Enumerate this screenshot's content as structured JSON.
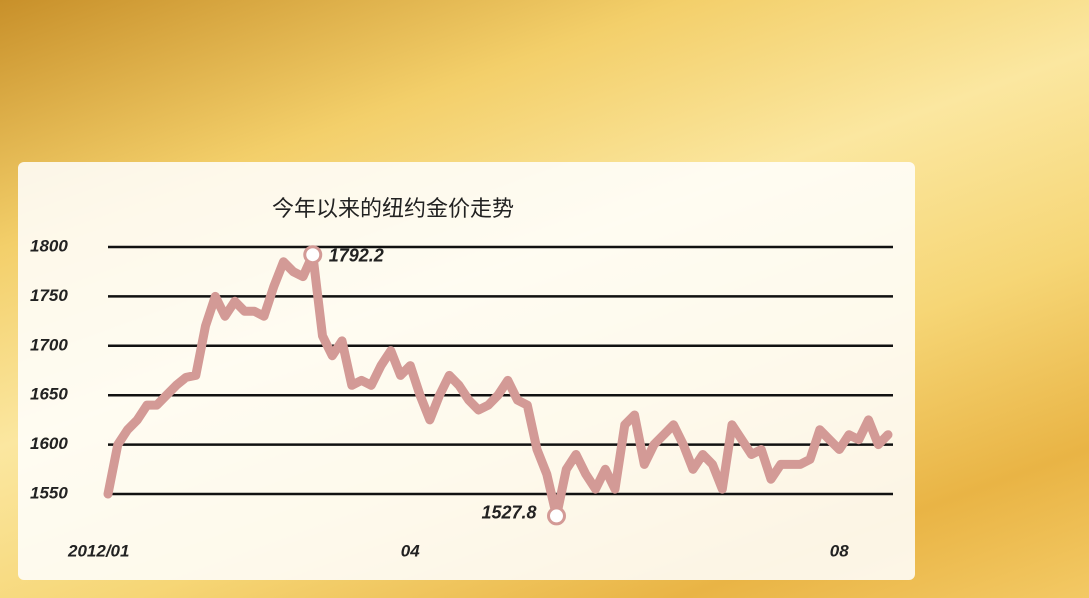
{
  "chart_data": {
    "type": "line",
    "title": "今年以来的纽约金价走势",
    "categories": [
      "2012/01",
      null,
      null,
      null,
      null,
      null,
      null,
      null,
      null,
      null,
      null,
      null,
      null,
      null,
      null,
      null,
      null,
      null,
      null,
      null,
      null,
      null,
      null,
      null,
      null,
      null,
      null,
      null,
      null,
      null,
      null,
      "04",
      null,
      null,
      null,
      null,
      null,
      null,
      null,
      null,
      null,
      null,
      null,
      null,
      null,
      null,
      null,
      null,
      null,
      null,
      null,
      null,
      null,
      null,
      null,
      null,
      null,
      null,
      null,
      null,
      null,
      null,
      null,
      null,
      null,
      null,
      null,
      null,
      null,
      null,
      null,
      null,
      null,
      null,
      null,
      "08",
      null,
      null,
      null,
      null,
      null
    ],
    "series": [
      {
        "color": "#d39a96",
        "values": [
          1550,
          1600,
          1615,
          1625,
          1640,
          1640,
          1650,
          1660,
          1668,
          1670,
          1720,
          1750,
          1730,
          1745,
          1735,
          1735,
          1730,
          1760,
          1785,
          1775,
          1770,
          1792.2,
          1710,
          1690,
          1705,
          1660,
          1665,
          1660,
          1680,
          1695,
          1670,
          1680,
          1650,
          1625,
          1650,
          1670,
          1660,
          1645,
          1635,
          1640,
          1650,
          1665,
          1645,
          1640,
          1595,
          1570,
          1527.8,
          1575,
          1590,
          1570,
          1555,
          1575,
          1555,
          1620,
          1630,
          1580,
          1600,
          1610,
          1620,
          1600,
          1575,
          1590,
          1580,
          1555,
          1620,
          1605,
          1590,
          1595,
          1565,
          1580,
          1580,
          1580,
          1585,
          1615,
          1605,
          1595,
          1610,
          1605,
          1625,
          1600,
          1610
        ]
      }
    ],
    "ylim": [
      1550,
      1800
    ],
    "yticks": [
      1550,
      1600,
      1650,
      1700,
      1750,
      1800
    ],
    "grid": true,
    "labeled_points": [
      21,
      46
    ]
  }
}
